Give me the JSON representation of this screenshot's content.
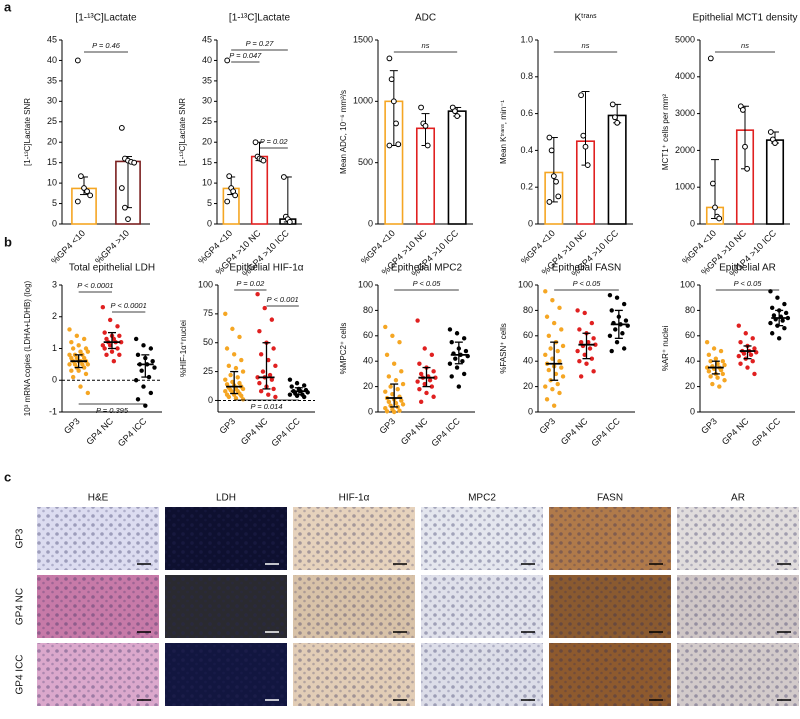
{
  "panel_labels": [
    "a",
    "b",
    "c"
  ],
  "chart_data": [
    {
      "type": "dot_bar",
      "title": "[1-¹³C]Lactate",
      "y_label": "[1-¹³C]Lactate SNR",
      "categories": [
        "%GP4 <10",
        "%GP4 >10"
      ],
      "colors": [
        "#f5a623",
        "#7a1f1f"
      ],
      "values": [
        8.7,
        15.3
      ],
      "err_lo": [
        7.2,
        4
      ],
      "err_hi": [
        11.5,
        16.5
      ],
      "points": [
        [
          40,
          11.7,
          8.8,
          8,
          7,
          5.5
        ],
        [
          23.5,
          16,
          15.5,
          15.2,
          15,
          8.8,
          4,
          1.2
        ]
      ],
      "ylim": [
        0,
        45
      ],
      "yticks": [
        0,
        5,
        10,
        15,
        20,
        25,
        30,
        35,
        40,
        45
      ],
      "annotations": [
        "P = 0.46"
      ]
    },
    {
      "type": "dot_bar",
      "title": "[1-¹³C]Lactate",
      "y_label": "[1-¹³C]Lactate SNR",
      "categories": [
        "%GP4 <10",
        "%GP4 >10 NC",
        "%GP4 >10 ICC"
      ],
      "colors": [
        "#f5a623",
        "#e02020",
        "#000000"
      ],
      "values": [
        8.7,
        16.5,
        1.2
      ],
      "err_lo": [
        7.2,
        15.5,
        0.5
      ],
      "err_hi": [
        11.5,
        20,
        11.5
      ],
      "points": [
        [
          40,
          11.7,
          8.8,
          8,
          7,
          5.5
        ],
        [
          20,
          16.5,
          16,
          15.8,
          15.5
        ],
        [
          11.5,
          1.8,
          1.2,
          0.5
        ]
      ],
      "ylim": [
        0,
        45
      ],
      "yticks": [
        0,
        5,
        10,
        15,
        20,
        25,
        30,
        35,
        40,
        45
      ],
      "annotations": [
        "P = 0.27",
        "P = 0.047",
        "P = 0.02"
      ]
    },
    {
      "type": "dot_bar",
      "title": "ADC",
      "y_label": "Mean ADC, 10⁻⁶ mm²/s",
      "categories": [
        "%GP4 <10",
        "%GP4 >10 NC",
        "%GP4 >10 ICC"
      ],
      "colors": [
        "#f5a623",
        "#e02020",
        "#000000"
      ],
      "values": [
        1000,
        780,
        920
      ],
      "err_lo": [
        640,
        640,
        880
      ],
      "err_hi": [
        1250,
        900,
        950
      ],
      "points": [
        [
          1350,
          1180,
          1000,
          820,
          650,
          640
        ],
        [
          950,
          820,
          800,
          640
        ],
        [
          950,
          920,
          880
        ]
      ],
      "ylim": [
        0,
        1500
      ],
      "yticks": [
        0,
        500,
        1000,
        1500
      ],
      "annotations": [
        "ns"
      ]
    },
    {
      "type": "dot_bar",
      "title": "Kᵗʳᵃⁿˢ",
      "y_label": "Mean Kᵗʳᵃⁿˢ, min⁻¹",
      "categories": [
        "%GP4 <10",
        "%GP4 >10 NC",
        "%GP4 >10 ICC"
      ],
      "colors": [
        "#f5a623",
        "#e02020",
        "#000000"
      ],
      "values": [
        0.28,
        0.45,
        0.59
      ],
      "err_lo": [
        0.12,
        0.32,
        0.55
      ],
      "err_hi": [
        0.47,
        0.72,
        0.65
      ],
      "points": [
        [
          0.47,
          0.4,
          0.26,
          0.23,
          0.15,
          0.12
        ],
        [
          0.7,
          0.48,
          0.42,
          0.32
        ],
        [
          0.65,
          0.58,
          0.55
        ]
      ],
      "ylim": [
        0,
        1
      ],
      "yticks": [
        0,
        0.2,
        0.4,
        0.6,
        0.8,
        {
          "value": 1,
          "label": "1.0"
        }
      ],
      "annotations": [
        "ns"
      ]
    },
    {
      "type": "dot_bar",
      "title": "Epithelial MCT1 density",
      "y_label": "MCT1⁺ cells per mm²",
      "categories": [
        "%GP4 <10",
        "%GP4 >10 NC",
        "%GP4 >10 ICC"
      ],
      "colors": [
        "#f5a623",
        "#e02020",
        "#000000"
      ],
      "values": [
        450,
        2550,
        2280
      ],
      "err_lo": [
        150,
        1500,
        2200
      ],
      "err_hi": [
        1750,
        3200,
        2500
      ],
      "points": [
        [
          4500,
          1100,
          450,
          200,
          150
        ],
        [
          3200,
          3100,
          2100,
          1500
        ],
        [
          2500,
          2300,
          2200
        ]
      ],
      "ylim": [
        0,
        5000
      ],
      "yticks": [
        0,
        1000,
        2000,
        3000,
        4000,
        5000
      ],
      "annotations": [
        "ns"
      ]
    },
    {
      "type": "dot_plot",
      "title": "Total epithelial LDH",
      "y_label": "10³ mRNA copies (LDHA+LDHB) (log)",
      "categories": [
        "GP3",
        "GP4 NC",
        "GP4 ICC"
      ],
      "zero_line": true,
      "groups": [
        {
          "color": "#f5a623",
          "median": 0.6,
          "q1": 0.4,
          "q3": 0.8,
          "values": [
            1.6,
            1.4,
            1.3,
            1.2,
            1.1,
            1.0,
            1.0,
            0.9,
            0.9,
            0.8,
            0.8,
            0.8,
            0.7,
            0.7,
            0.7,
            0.6,
            0.6,
            0.6,
            0.6,
            0.5,
            0.5,
            0.5,
            0.5,
            0.4,
            0.4,
            0.3,
            0.3,
            0.2,
            0.1,
            -0.2,
            -0.4
          ]
        },
        {
          "color": "#e02020",
          "median": 1.2,
          "q1": 1.0,
          "q3": 1.5,
          "values": [
            2.3,
            1.9,
            1.7,
            1.5,
            1.4,
            1.4,
            1.3,
            1.3,
            1.2,
            1.2,
            1.2,
            1.1,
            1.1,
            1.0,
            1.0,
            0.9,
            0.8,
            0.8,
            0.6
          ]
        },
        {
          "color": "#000000",
          "median": 0.5,
          "q1": 0.1,
          "q3": 0.8,
          "values": [
            1.3,
            1.1,
            1.0,
            0.8,
            0.7,
            0.6,
            0.5,
            0.5,
            0.4,
            0.3,
            0.1,
            0.0,
            -0.2,
            -0.4,
            -0.6,
            -0.8
          ]
        }
      ],
      "ylim": [
        -1,
        3
      ],
      "yticks": [
        -1,
        0,
        1,
        2,
        3
      ],
      "annotations": [
        "P < 0.0001",
        "P < 0.0001",
        "P = 0.395"
      ]
    },
    {
      "type": "dot_plot",
      "title": "Epithelial HIF-1α",
      "y_label": "%HIF-1α⁺nuclei",
      "categories": [
        "GP3",
        "GP4 NC",
        "GP4 ICC"
      ],
      "zero_line": true,
      "groups": [
        {
          "color": "#f5a623",
          "median": 12,
          "q1": 6,
          "q3": 25,
          "values": [
            75,
            62,
            55,
            45,
            40,
            35,
            30,
            28,
            25,
            22,
            20,
            18,
            16,
            15,
            14,
            13,
            12,
            11,
            10,
            10,
            9,
            8,
            8,
            7,
            6,
            5,
            5,
            4,
            3,
            2,
            1
          ]
        },
        {
          "color": "#e02020",
          "median": 20,
          "q1": 10,
          "q3": 50,
          "values": [
            92,
            80,
            70,
            60,
            50,
            45,
            40,
            35,
            30,
            25,
            22,
            20,
            20,
            18,
            15,
            12,
            10,
            8,
            5,
            3
          ]
        },
        {
          "color": "#000000",
          "median": 8,
          "q1": 5,
          "q3": 11,
          "values": [
            18,
            15,
            13,
            12,
            10,
            9,
            8,
            8,
            7,
            6,
            5,
            5,
            4,
            3
          ]
        }
      ],
      "ylim": [
        -10,
        100
      ],
      "yticks": [
        0,
        25,
        50,
        75,
        100
      ],
      "annotations": [
        "P = 0.02",
        "P < 0.001",
        "P = 0.014"
      ]
    },
    {
      "type": "dot_plot",
      "title": "Epithelial MPC2",
      "y_label": "%MPC2⁺ cells",
      "categories": [
        "GP3",
        "GP4 NC",
        "GP4 ICC"
      ],
      "zero_line": false,
      "groups": [
        {
          "color": "#f5a623",
          "median": 11,
          "q1": 4,
          "q3": 22,
          "values": [
            67,
            60,
            55,
            45,
            38,
            32,
            28,
            25,
            22,
            20,
            18,
            16,
            14,
            12,
            11,
            10,
            9,
            8,
            7,
            6,
            5,
            4,
            3,
            2,
            1,
            0.5,
            0
          ]
        },
        {
          "color": "#e02020",
          "median": 27,
          "q1": 20,
          "q3": 35,
          "values": [
            72,
            50,
            45,
            38,
            35,
            32,
            30,
            28,
            27,
            27,
            25,
            24,
            22,
            20,
            18,
            15,
            12,
            8
          ]
        },
        {
          "color": "#000000",
          "median": 45,
          "q1": 38,
          "q3": 55,
          "values": [
            65,
            62,
            58,
            55,
            50,
            48,
            46,
            45,
            44,
            42,
            40,
            38,
            35,
            30,
            28,
            20
          ]
        }
      ],
      "ylim": [
        0,
        100
      ],
      "yticks": [
        0,
        20,
        40,
        60,
        80,
        100
      ],
      "annotations": [
        "P < 0.05"
      ]
    },
    {
      "type": "dot_plot",
      "title": "Epithelial FASN",
      "y_label": "%FASN⁺ cells",
      "categories": [
        "GP3",
        "GP4 NC",
        "GP4 ICC"
      ],
      "zero_line": false,
      "groups": [
        {
          "color": "#f5a623",
          "median": 38,
          "q1": 25,
          "q3": 55,
          "values": [
            95,
            88,
            82,
            75,
            70,
            65,
            60,
            55,
            52,
            50,
            48,
            45,
            42,
            40,
            38,
            36,
            35,
            33,
            30,
            28,
            25,
            22,
            20,
            18,
            15,
            10,
            5
          ]
        },
        {
          "color": "#e02020",
          "median": 53,
          "q1": 42,
          "q3": 62,
          "values": [
            80,
            78,
            70,
            65,
            62,
            58,
            55,
            55,
            53,
            52,
            50,
            48,
            45,
            42,
            40,
            38,
            32,
            28
          ]
        },
        {
          "color": "#000000",
          "median": 69,
          "q1": 58,
          "q3": 80,
          "values": [
            92,
            90,
            85,
            80,
            75,
            72,
            70,
            69,
            68,
            65,
            62,
            60,
            55,
            50,
            48
          ]
        }
      ],
      "ylim": [
        0,
        100
      ],
      "yticks": [
        0,
        20,
        40,
        60,
        80,
        100
      ],
      "annotations": [
        "P < 0.05"
      ]
    },
    {
      "type": "dot_plot",
      "title": "Epithelial AR",
      "y_label": "%AR⁺ nuclei",
      "categories": [
        "GP3",
        "GP4 NC",
        "GP4 ICC"
      ],
      "zero_line": false,
      "groups": [
        {
          "color": "#f5a623",
          "median": 35,
          "q1": 30,
          "q3": 40,
          "values": [
            55,
            50,
            48,
            45,
            42,
            40,
            40,
            38,
            37,
            36,
            35,
            35,
            34,
            33,
            32,
            30,
            30,
            28,
            27,
            25,
            22,
            20
          ]
        },
        {
          "color": "#e02020",
          "median": 48,
          "q1": 42,
          "q3": 52,
          "values": [
            68,
            62,
            58,
            55,
            52,
            50,
            48,
            48,
            47,
            46,
            45,
            44,
            42,
            40,
            38,
            35,
            30
          ]
        },
        {
          "color": "#000000",
          "median": 74,
          "q1": 68,
          "q3": 80,
          "values": [
            95,
            90,
            85,
            82,
            80,
            78,
            76,
            75,
            74,
            73,
            72,
            70,
            68,
            66,
            62,
            58
          ]
        }
      ],
      "ylim": [
        0,
        100
      ],
      "yticks": [
        0,
        20,
        40,
        60,
        80,
        100
      ],
      "annotations": [
        "P < 0.05"
      ]
    }
  ],
  "image_grid": {
    "columns": [
      "H&E",
      "LDH",
      "HIF-1α",
      "MPC2",
      "FASN",
      "AR"
    ],
    "rows": [
      "GP3",
      "GP4 NC",
      "GP4 ICC"
    ]
  }
}
